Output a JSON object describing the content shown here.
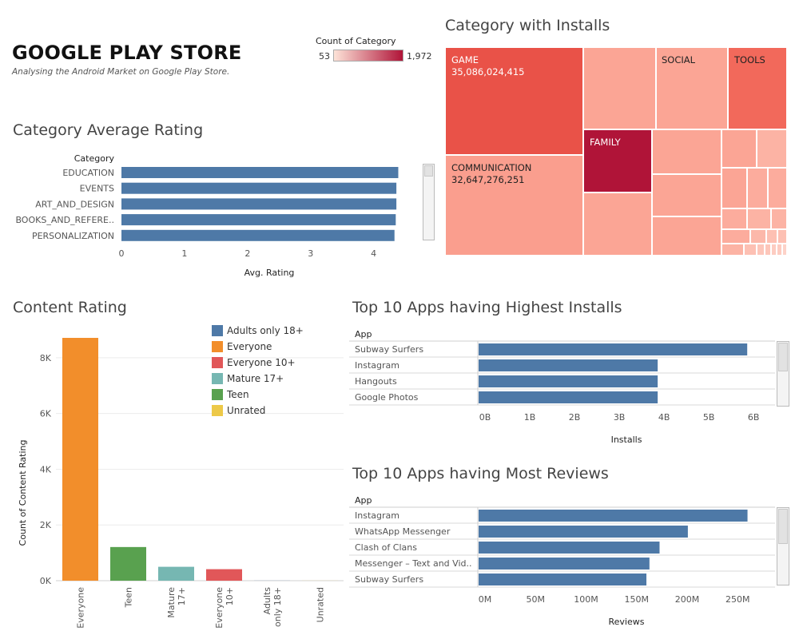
{
  "header": {
    "title": "GOOGLE PLAY STORE",
    "subtitle": "Analysing the Android Market on Google Play Store."
  },
  "color_legend": {
    "title": "Count of Category",
    "min_label": "53",
    "max_label": "1,972",
    "min_color": "#fde3d8",
    "max_color": "#b01438"
  },
  "colors": {
    "bar_blue": "#4e79a7",
    "everyone": "#f28e2b",
    "teen": "#59a14f",
    "mature": "#76b7b2",
    "everyone10": "#e15759",
    "adults": "#4e79a7",
    "unrated": "#edc948"
  },
  "chart_data": [
    {
      "id": "category_avg_rating",
      "type": "bar",
      "orientation": "horizontal",
      "title": "Category Average Rating",
      "category_header": "Category",
      "xlabel": "Avg. Rating",
      "categories": [
        "EDUCATION",
        "EVENTS",
        "ART_AND_DESIGN",
        "BOOKS_AND_REFERE..",
        "PERSONALIZATION"
      ],
      "values": [
        4.39,
        4.36,
        4.36,
        4.35,
        4.33
      ],
      "xlim": [
        0,
        4.8
      ],
      "xticks": [
        0,
        1,
        2,
        3,
        4
      ],
      "xtick_labels": [
        "0",
        "1",
        "2",
        "3",
        "4"
      ]
    },
    {
      "id": "category_installs",
      "type": "treemap",
      "title": "Category with Installs",
      "labels": [
        {
          "name": "GAME",
          "value": "35,086,024,415"
        },
        {
          "name": "COMMUNICATION",
          "value": "32,647,276,251"
        },
        {
          "name": "SOCIAL",
          "value": ""
        },
        {
          "name": "TOOLS",
          "value": ""
        },
        {
          "name": "FAMILY",
          "value": ""
        }
      ]
    },
    {
      "id": "content_rating",
      "type": "bar",
      "title": "Content Rating",
      "ylabel": "Count of Content Rating",
      "categories": [
        "Everyone",
        "Teen",
        "Mature 17+",
        "Everyone 10+",
        "Adults only 18+",
        "Unrated"
      ],
      "tick_labels": [
        [
          "Everyone"
        ],
        [
          "Teen"
        ],
        [
          "Mature",
          "17+"
        ],
        [
          "Everyone",
          "10+"
        ],
        [
          "Adults",
          "only 18+"
        ],
        [
          "Unrated"
        ]
      ],
      "values": [
        8714,
        1208,
        499,
        413,
        3,
        2
      ],
      "color_keys": [
        "everyone",
        "teen",
        "mature",
        "everyone10",
        "adults",
        "unrated"
      ],
      "ylim": [
        0,
        8800
      ],
      "yticks": [
        0,
        2000,
        4000,
        6000,
        8000
      ],
      "ytick_labels": [
        "0K",
        "2K",
        "4K",
        "6K",
        "8K"
      ],
      "legend": [
        {
          "label": "Adults only 18+",
          "color_key": "adults"
        },
        {
          "label": "Everyone",
          "color_key": "everyone"
        },
        {
          "label": "Everyone 10+",
          "color_key": "everyone10"
        },
        {
          "label": "Mature 17+",
          "color_key": "mature"
        },
        {
          "label": "Teen",
          "color_key": "teen"
        },
        {
          "label": "Unrated",
          "color_key": "unrated"
        }
      ]
    },
    {
      "id": "top_installs",
      "type": "bar",
      "orientation": "horizontal",
      "title": "Top 10 Apps having Highest Installs",
      "category_header": "App",
      "xlabel": "Installs",
      "categories": [
        "Subway Surfers",
        "Instagram",
        "Hangouts",
        "Google Photos"
      ],
      "values": [
        6000000000,
        4000000000,
        4000000000,
        4000000000
      ],
      "xlim": [
        0,
        6300000000
      ],
      "xticks": [
        0,
        1000000000,
        2000000000,
        3000000000,
        4000000000,
        5000000000,
        6000000000
      ],
      "xtick_labels": [
        "0B",
        "1B",
        "2B",
        "3B",
        "4B",
        "5B",
        "6B"
      ]
    },
    {
      "id": "top_reviews",
      "type": "bar",
      "orientation": "horizontal",
      "title": "Top 10 Apps having Most Reviews",
      "category_header": "App",
      "xlabel": "Reviews",
      "categories": [
        "Instagram",
        "WhatsApp Messenger",
        "Clash of Clans",
        "Messenger – Text and Vid..",
        "Subway Surfers"
      ],
      "values": [
        266000000,
        207000000,
        179000000,
        169000000,
        166000000
      ],
      "xlim": [
        0,
        279000000
      ],
      "xticks": [
        0,
        50000000,
        100000000,
        150000000,
        200000000,
        250000000
      ],
      "xtick_labels": [
        "0M",
        "50M",
        "100M",
        "150M",
        "200M",
        "250M"
      ]
    }
  ]
}
